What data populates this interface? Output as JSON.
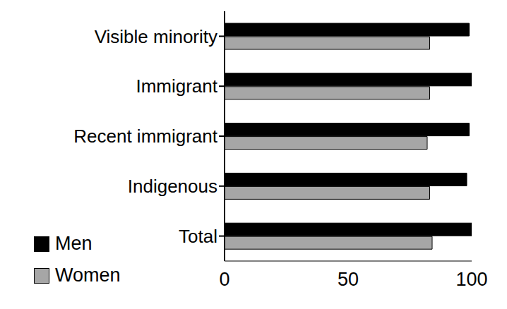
{
  "chart_data": {
    "type": "bar",
    "orientation": "horizontal",
    "categories": [
      "Visible minority",
      "Immigrant",
      "Recent immigrant",
      "Indigenous",
      "Total"
    ],
    "series": [
      {
        "name": "Men",
        "color": "#000000",
        "values": [
          99,
          100,
          99,
          98,
          100
        ]
      },
      {
        "name": "Women",
        "color": "#a6a6a6",
        "values": [
          83,
          83,
          82,
          83,
          84
        ]
      }
    ],
    "xlim": [
      0,
      100
    ],
    "xticks": [
      0,
      50,
      100
    ],
    "legend": "lower left",
    "grid": false
  }
}
